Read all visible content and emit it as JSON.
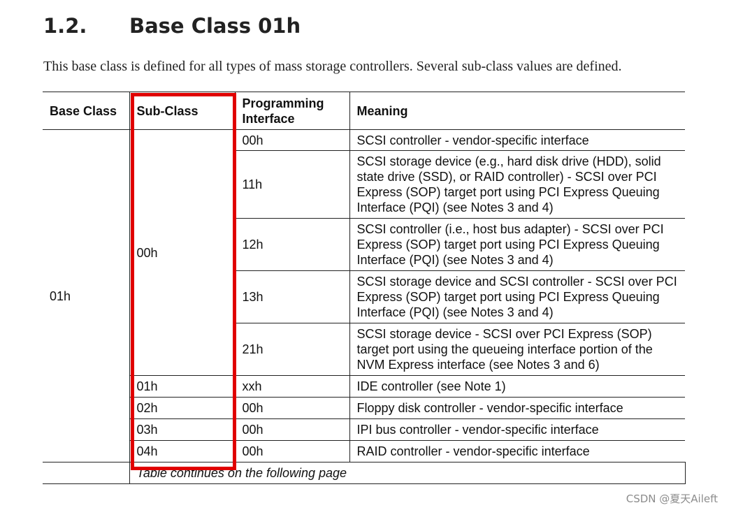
{
  "section": {
    "number": "1.2.",
    "title": "Base Class 01h",
    "intro": "This base class is defined for all types of mass storage controllers. Several sub-class values are defined."
  },
  "table": {
    "headers": {
      "base_class": "Base Class",
      "sub_class": "Sub-Class",
      "prog_if_line1": "Programming",
      "prog_if_line2": "Interface",
      "meaning": "Meaning"
    },
    "base_class_value": "01h",
    "sub_class_00": "00h",
    "rows": [
      {
        "prog_if": "00h",
        "meaning": "SCSI controller - vendor-specific interface"
      },
      {
        "prog_if": "11h",
        "meaning": "SCSI storage device (e.g., hard disk drive (HDD), solid state drive (SSD), or RAID controller) - SCSI over PCI Express (SOP) target port using PCI Express Queuing Interface (PQI) (see Notes 3 and 4)"
      },
      {
        "prog_if": "12h",
        "meaning": "SCSI controller (i.e., host bus adapter) - SCSI over PCI Express (SOP) target port using PCI Express Queuing Interface (PQI) (see Notes 3 and 4)"
      },
      {
        "prog_if": "13h",
        "meaning": "SCSI storage device and SCSI controller - SCSI over PCI Express (SOP) target port using PCI Express Queuing Interface (PQI) (see Notes 3 and 4)"
      },
      {
        "prog_if": "21h",
        "meaning": "SCSI storage device - SCSI over PCI Express (SOP) target port using the queueing interface portion of the NVM Express interface (see Notes 3 and 6)"
      },
      {
        "sub_class": "01h",
        "prog_if": "xxh",
        "meaning": "IDE controller (see Note 1)"
      },
      {
        "sub_class": "02h",
        "prog_if": "00h",
        "meaning": "Floppy disk controller - vendor-specific interface"
      },
      {
        "sub_class": "03h",
        "prog_if": "00h",
        "meaning": "IPI bus controller - vendor-specific interface"
      },
      {
        "sub_class": "04h",
        "prog_if": "00h",
        "meaning": "RAID controller - vendor-specific interface"
      }
    ],
    "continues_note": "Table continues on the following page"
  },
  "highlight_color": "#e00000",
  "watermark": "CSDN @夏天Aileft"
}
